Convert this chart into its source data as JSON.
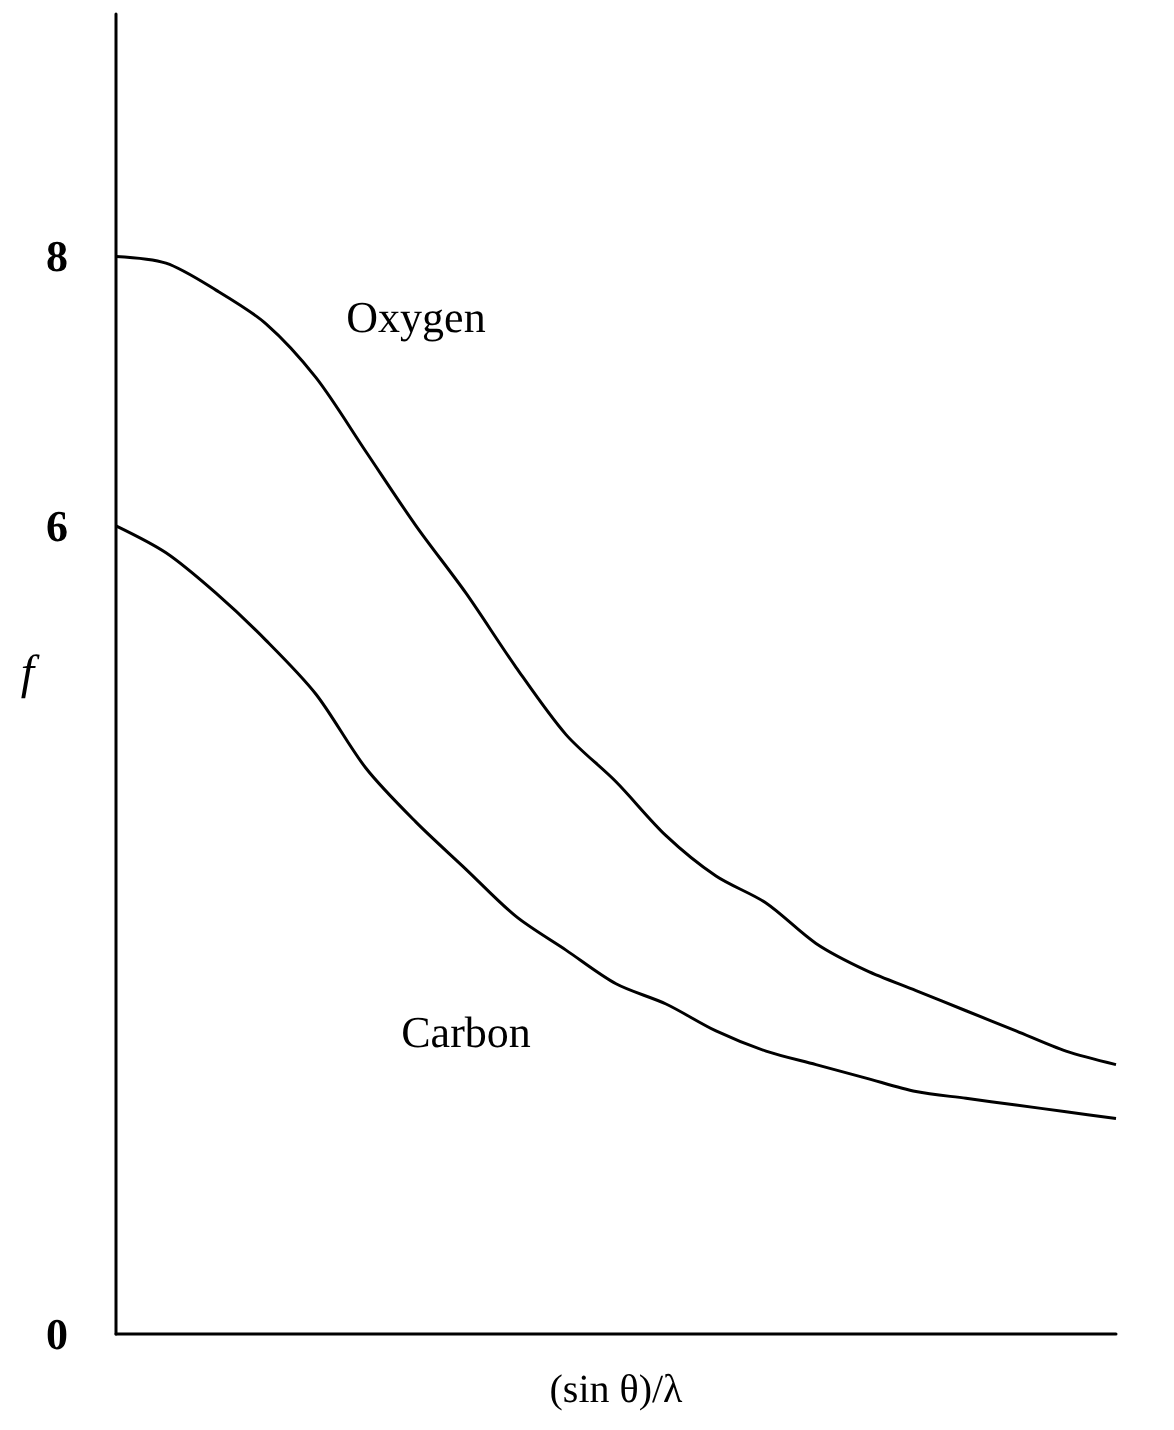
{
  "chart_data": {
    "type": "line",
    "xlabel": "(sin θ)/λ",
    "ylabel": "f",
    "categories": [
      null,
      null,
      null,
      null,
      null,
      null,
      null,
      null,
      null,
      null,
      null,
      null,
      null,
      null,
      null,
      null,
      null,
      null,
      null,
      null,
      null
    ],
    "series": [
      {
        "name": "Oxygen",
        "color": "#000000",
        "values": [
          8,
          7.95,
          7.75,
          7.5,
          7.1,
          6.55,
          6.0,
          5.5,
          4.95,
          4.45,
          4.1,
          3.7,
          3.4,
          3.2,
          2.9,
          2.7,
          2.55,
          2.4,
          2.25,
          2.1,
          2.0
        ]
      },
      {
        "name": "Carbon",
        "color": "#000000",
        "values": [
          6,
          5.8,
          5.5,
          5.15,
          4.75,
          4.2,
          3.8,
          3.45,
          3.1,
          2.85,
          2.6,
          2.45,
          2.25,
          2.1,
          2.0,
          1.9,
          1.8,
          1.75,
          1.7,
          1.65,
          1.6
        ]
      }
    ],
    "ylim": [
      0,
      9.8
    ],
    "yticks": [
      0,
      6,
      8
    ],
    "grid": false,
    "legend": false,
    "marker": "none",
    "line_style": "solid"
  }
}
